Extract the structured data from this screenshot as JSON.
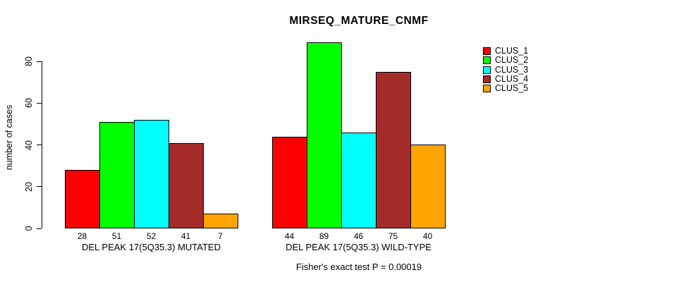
{
  "title": "MIRSEQ_MATURE_CNMF",
  "footer": "Fisher's exact test P = 0.00019",
  "y_axis": {
    "label": "number of cases",
    "ticks": [
      0,
      20,
      40,
      60,
      80
    ]
  },
  "legend": {
    "items": [
      {
        "label": "CLUS_1",
        "color": "#FF0000"
      },
      {
        "label": "CLUS_2",
        "color": "#00FF00"
      },
      {
        "label": "CLUS_3",
        "color": "#00FFFF"
      },
      {
        "label": "CLUS_4",
        "color": "#A52A2A"
      },
      {
        "label": "CLUS_5",
        "color": "#FFA500"
      }
    ]
  },
  "chart_data": {
    "type": "bar",
    "title": "MIRSEQ_MATURE_CNMF",
    "xlabel": "",
    "ylabel": "number of cases",
    "ylim": [
      0,
      89
    ],
    "yticks": [
      0,
      20,
      40,
      60,
      80
    ],
    "grid": false,
    "legend_position": "right",
    "bar_value_labels": true,
    "categories": [
      "DEL PEAK 17(5Q35.3) MUTATED",
      "DEL PEAK 17(5Q35.3) WILD-TYPE"
    ],
    "series": [
      {
        "name": "CLUS_1",
        "color": "#FF0000",
        "values": [
          28,
          44
        ]
      },
      {
        "name": "CLUS_2",
        "color": "#00FF00",
        "values": [
          51,
          89
        ]
      },
      {
        "name": "CLUS_3",
        "color": "#00FFFF",
        "values": [
          52,
          46
        ]
      },
      {
        "name": "CLUS_4",
        "color": "#A52A2A",
        "values": [
          41,
          75
        ]
      },
      {
        "name": "CLUS_5",
        "color": "#FFA500",
        "values": [
          7,
          40
        ]
      }
    ],
    "annotation": "Fisher's exact test P = 0.00019"
  }
}
